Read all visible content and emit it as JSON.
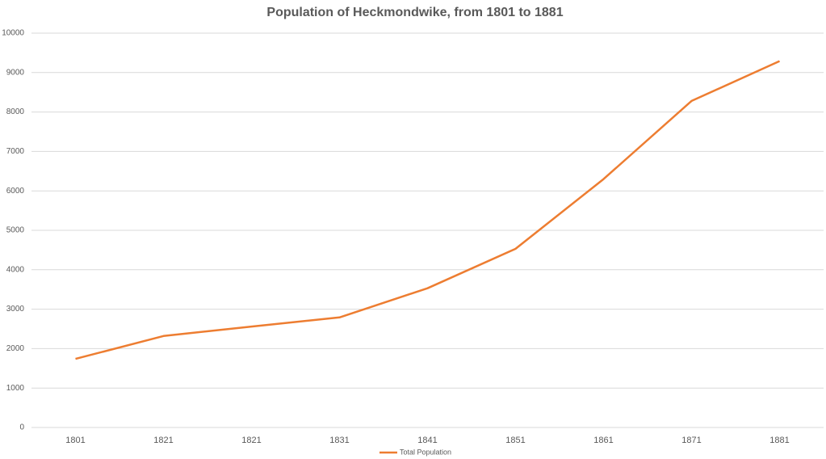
{
  "chart_data": {
    "type": "line",
    "title": "Population of Heckmondwike, from 1801 to 1881",
    "categories": [
      "1801",
      "1821",
      "1821",
      "1831",
      "1841",
      "1851",
      "1861",
      "1871",
      "1881"
    ],
    "series": [
      {
        "name": "Total Population",
        "color": "#ed7d31",
        "values": [
          1740,
          2320,
          2560,
          2790,
          3530,
          4530,
          6300,
          8280,
          9290
        ]
      }
    ],
    "ylim": [
      0,
      10000
    ],
    "yticks": [
      0,
      1000,
      2000,
      3000,
      4000,
      5000,
      6000,
      7000,
      8000,
      9000,
      10000
    ],
    "grid": true,
    "legend": "bottom"
  }
}
